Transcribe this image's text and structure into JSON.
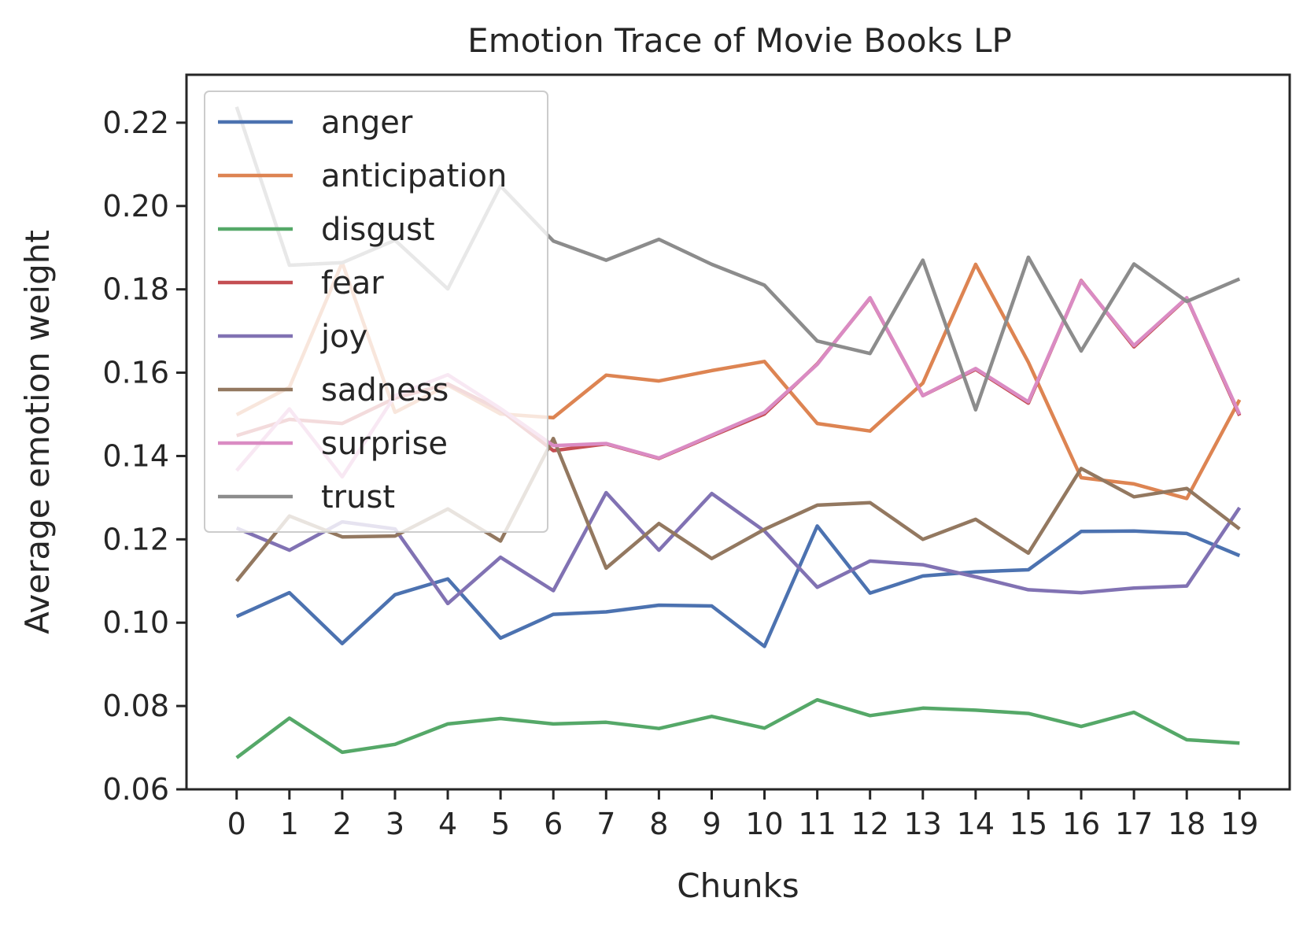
{
  "chart_data": {
    "type": "line",
    "title": "Emotion Trace of Movie Books LP",
    "xlabel": "Chunks",
    "ylabel": "Average emotion weight",
    "x": [
      0,
      1,
      2,
      3,
      4,
      5,
      6,
      7,
      8,
      9,
      10,
      11,
      12,
      13,
      14,
      15,
      16,
      17,
      18,
      19
    ],
    "xlim": [
      -0.95,
      19.95
    ],
    "ylim": [
      0.06,
      0.2315
    ],
    "yticks": [
      0.06,
      0.08,
      0.1,
      0.12,
      0.14,
      0.16,
      0.18,
      0.2,
      0.22
    ],
    "ytick_labels": [
      "0.06",
      "0.08",
      "0.10",
      "0.12",
      "0.14",
      "0.16",
      "0.18",
      "0.20",
      "0.22"
    ],
    "xtick_labels": [
      "0",
      "1",
      "2",
      "3",
      "4",
      "5",
      "6",
      "7",
      "8",
      "9",
      "10",
      "11",
      "12",
      "13",
      "14",
      "15",
      "16",
      "17",
      "18",
      "19"
    ],
    "grid": false,
    "legend_position": "top-left",
    "series": [
      {
        "name": "anger",
        "color": "#4c72b0",
        "values": [
          0.1015,
          0.1072,
          0.095,
          0.1067,
          0.1105,
          0.0963,
          0.102,
          0.1026,
          0.1042,
          0.104,
          0.0943,
          0.1232,
          0.1071,
          0.1112,
          0.1122,
          0.1127,
          0.1219,
          0.122,
          0.1214,
          0.1161
        ]
      },
      {
        "name": "anticipation",
        "color": "#dd8452",
        "values": [
          0.1499,
          0.1565,
          0.1864,
          0.1505,
          0.157,
          0.1501,
          0.1492,
          0.1594,
          0.158,
          0.1605,
          0.1627,
          0.1478,
          0.146,
          0.1575,
          0.186,
          0.1625,
          0.1348,
          0.1333,
          0.1298,
          0.1535
        ]
      },
      {
        "name": "disgust",
        "color": "#55a868",
        "values": [
          0.0676,
          0.0771,
          0.0689,
          0.0708,
          0.0757,
          0.077,
          0.0757,
          0.0761,
          0.0746,
          0.0775,
          0.0747,
          0.0815,
          0.0777,
          0.0795,
          0.079,
          0.0782,
          0.0751,
          0.0785,
          0.0719,
          0.0711
        ]
      },
      {
        "name": "fear",
        "color": "#c44e52",
        "values": [
          0.1449,
          0.1488,
          0.1478,
          0.1539,
          0.1573,
          0.151,
          0.1413,
          0.1429,
          0.1394,
          0.1448,
          0.1501,
          0.1621,
          0.1779,
          0.1545,
          0.1608,
          0.1527,
          0.1821,
          0.1662,
          0.1779,
          0.1497
        ]
      },
      {
        "name": "joy",
        "color": "#8172b3",
        "values": [
          0.1227,
          0.1174,
          0.1242,
          0.1225,
          0.1046,
          0.1157,
          0.1077,
          0.1312,
          0.1174,
          0.131,
          0.122,
          0.1085,
          0.1148,
          0.1139,
          0.111,
          0.1079,
          0.1072,
          0.1083,
          0.1088,
          0.1276
        ]
      },
      {
        "name": "sadness",
        "color": "#937860",
        "values": [
          0.11,
          0.1256,
          0.1206,
          0.1208,
          0.1273,
          0.1196,
          0.1442,
          0.1131,
          0.1238,
          0.1154,
          0.1224,
          0.1282,
          0.1288,
          0.12,
          0.1248,
          0.1167,
          0.137,
          0.1302,
          0.1322,
          0.1225
        ]
      },
      {
        "name": "surprise",
        "color": "#da8bc3",
        "values": [
          0.1365,
          0.1513,
          0.135,
          0.1545,
          0.1595,
          0.1514,
          0.1425,
          0.143,
          0.1395,
          0.145,
          0.1505,
          0.162,
          0.178,
          0.1545,
          0.161,
          0.153,
          0.182,
          0.1665,
          0.178,
          0.15
        ],
        "note_values_shown": true
      },
      {
        "name": "trust",
        "color": "#8c8c8c",
        "values": [
          0.2238,
          0.1858,
          0.1864,
          0.1918,
          0.1801,
          0.2048,
          0.1916,
          0.187,
          0.192,
          0.186,
          0.181,
          0.1676,
          0.1646,
          0.187,
          0.1511,
          0.1877,
          0.1652,
          0.1861,
          0.1771,
          0.1825
        ]
      }
    ]
  }
}
